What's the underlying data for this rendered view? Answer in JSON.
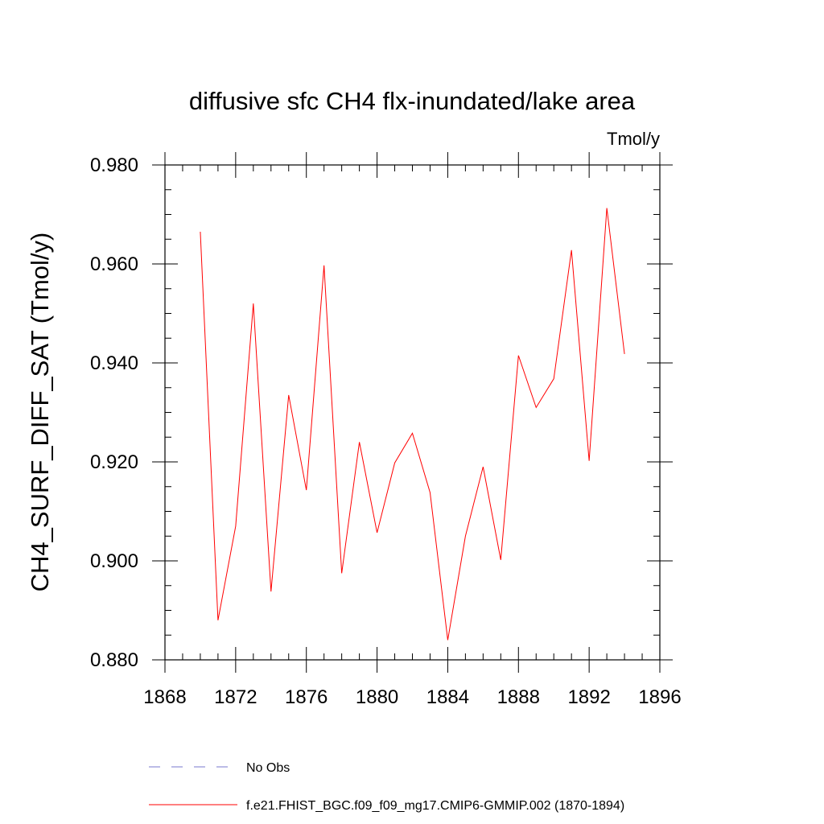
{
  "chart_data": {
    "type": "line",
    "title": "diffusive sfc CH4 flx-inundated/lake area",
    "units": "Tmol/y",
    "ylabel": "CH4_SURF_DIFF_SAT  (Tmol/y)",
    "xlabel": "",
    "xlim": [
      1868,
      1896
    ],
    "ylim": [
      0.88,
      0.98
    ],
    "xticks": [
      "1868",
      "1872",
      "1876",
      "1880",
      "1884",
      "1888",
      "1892",
      "1896"
    ],
    "yticks": [
      "0.880",
      "0.900",
      "0.920",
      "0.940",
      "0.960",
      "0.980"
    ],
    "grid": false,
    "legend_position": "bottom",
    "series": [
      {
        "name": "f.e21.FHIST_BGC.f09_f09_mg17.CMIP6-GMMIP.002 (1870-1894)",
        "color": "#ff0000",
        "style": "solid",
        "x": [
          1870,
          1871,
          1872,
          1873,
          1874,
          1875,
          1876,
          1877,
          1878,
          1879,
          1880,
          1881,
          1882,
          1883,
          1884,
          1885,
          1886,
          1887,
          1888,
          1889,
          1890,
          1891,
          1892,
          1893,
          1894
        ],
        "y": [
          0.9665,
          0.888,
          0.907,
          0.952,
          0.8938,
          0.9335,
          0.9143,
          0.9597,
          0.8975,
          0.924,
          0.9057,
          0.9198,
          0.9258,
          0.9138,
          0.884,
          0.905,
          0.919,
          0.9002,
          0.9415,
          0.931,
          0.9368,
          0.9628,
          0.9202,
          0.9713,
          0.9418
        ]
      }
    ],
    "legend": [
      {
        "label": "No Obs",
        "color": "#7777cc",
        "style": "dashed"
      },
      {
        "label": "f.e21.FHIST_BGC.f09_f09_mg17.CMIP6-GMMIP.002 (1870-1894)",
        "color": "#ff0000",
        "style": "solid"
      }
    ]
  }
}
